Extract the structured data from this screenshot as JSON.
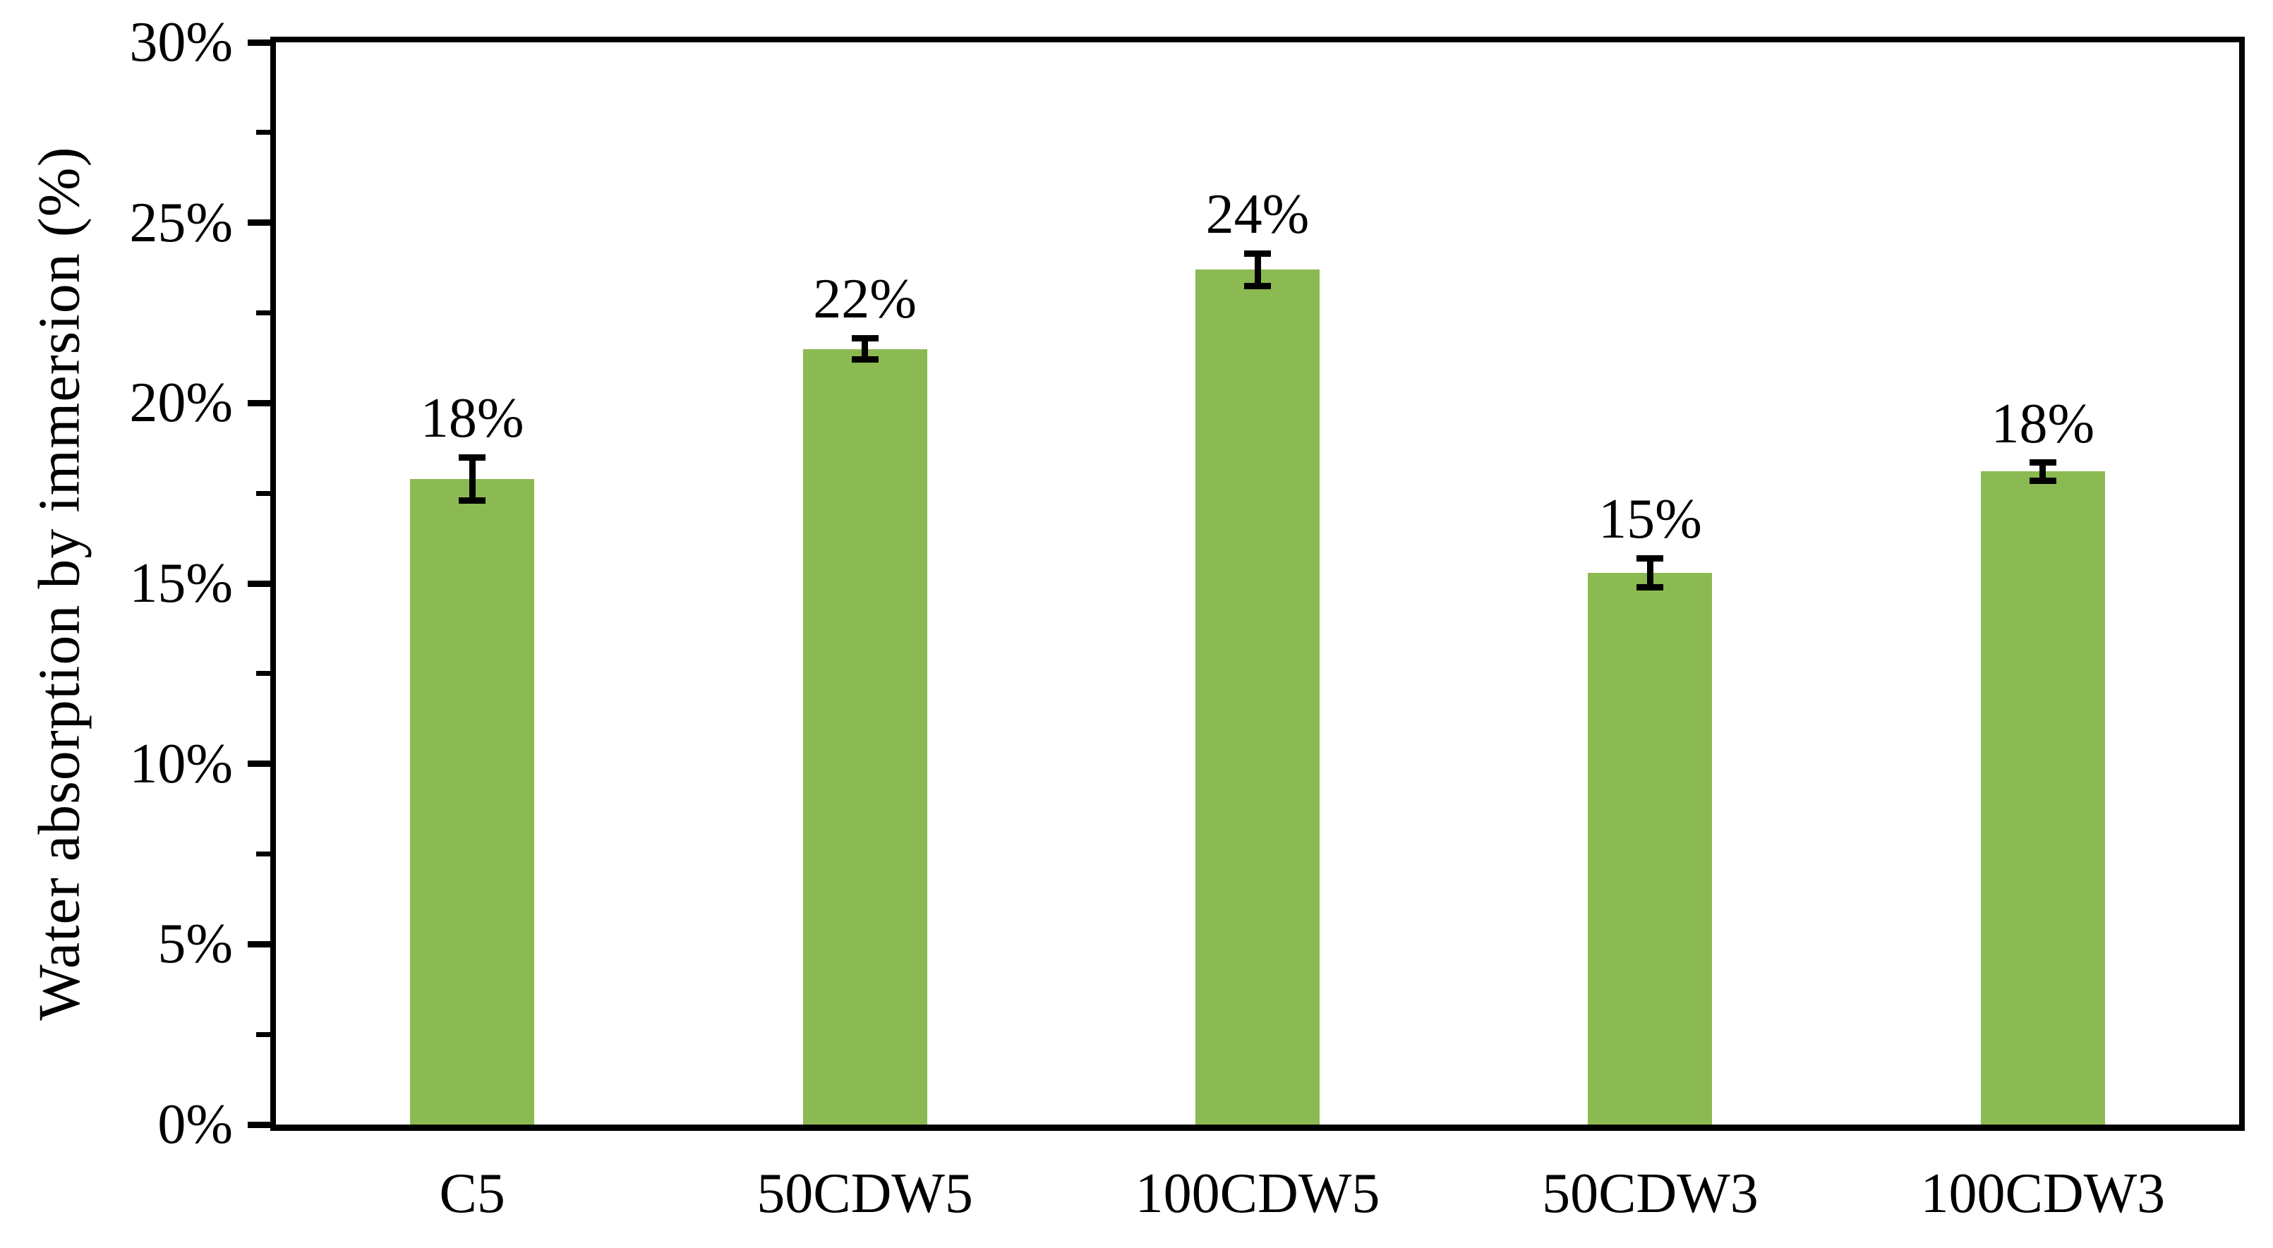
{
  "chart_data": {
    "type": "bar",
    "title": "",
    "ylabel": "Water absorption by immersion (%)",
    "xlabel": "",
    "categories": [
      "C5",
      "50CDW5",
      "100CDW5",
      "50CDW3",
      "100CDW3"
    ],
    "values": [
      17.9,
      21.5,
      23.7,
      15.3,
      18.1
    ],
    "bar_labels": [
      "18%",
      "22%",
      "24%",
      "15%",
      "18%"
    ],
    "error_bars": [
      0.6,
      0.3,
      0.45,
      0.4,
      0.25
    ],
    "ylim": [
      0,
      30
    ],
    "ytick_step": 5,
    "ytick_minor_step": 2.5,
    "ytick_labels": [
      "0%",
      "5%",
      "10%",
      "15%",
      "20%",
      "25%",
      "30%"
    ],
    "grid": false,
    "legend": null,
    "bar_color": "#8CBA52",
    "axis_color": "#000000",
    "text_color": "#000000",
    "background_color": "#ffffff"
  }
}
